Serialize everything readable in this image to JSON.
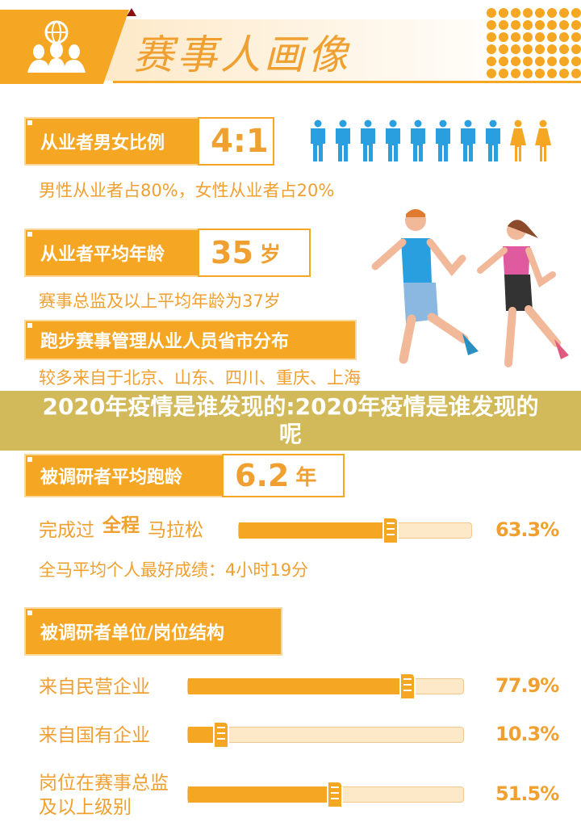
{
  "header": {
    "title": "赛事人画像",
    "icon": "people-globe-icon"
  },
  "gender": {
    "label": "从业者男女比例",
    "value": "4:1",
    "male_count": 8,
    "female_count": 2,
    "male_color": "#2a9fe0",
    "female_color": "#f5a623",
    "note": "男性从业者占80%，女性从业者占20%"
  },
  "age": {
    "label": "从业者平均年龄",
    "value": "35",
    "unit": "岁",
    "note": "赛事总监及以上平均年龄为37岁"
  },
  "region": {
    "label": "跑步赛事管理从业人员省市分布",
    "note": "较多来自于北京、山东、四川、重庆、上海"
  },
  "banner": {
    "text": "2020年疫情是谁发现的:2020年疫情是谁发现的呢"
  },
  "running_age": {
    "label": "被调研者平均跑龄",
    "value": "6.2",
    "unit": "年"
  },
  "marathon": {
    "prefix": "完成过",
    "highlight": "全程",
    "suffix": "马拉松",
    "percent": 63.3,
    "percent_label": "63.3%",
    "best": "全马平均个人最好成绩：4小时19分"
  },
  "structure": {
    "label": "被调研者单位/岗位结构",
    "rows": [
      {
        "label": "来自民营企业",
        "percent": 77.9,
        "percent_label": "77.9%"
      },
      {
        "label": "来自国有企业",
        "percent": 10.3,
        "percent_label": "10.3%"
      },
      {
        "label": "岗位在赛事总监及以上级别",
        "percent": 51.5,
        "percent_label": "51.5%"
      }
    ]
  },
  "colors": {
    "accent": "#f5a623",
    "blue": "#2a9fe0"
  }
}
